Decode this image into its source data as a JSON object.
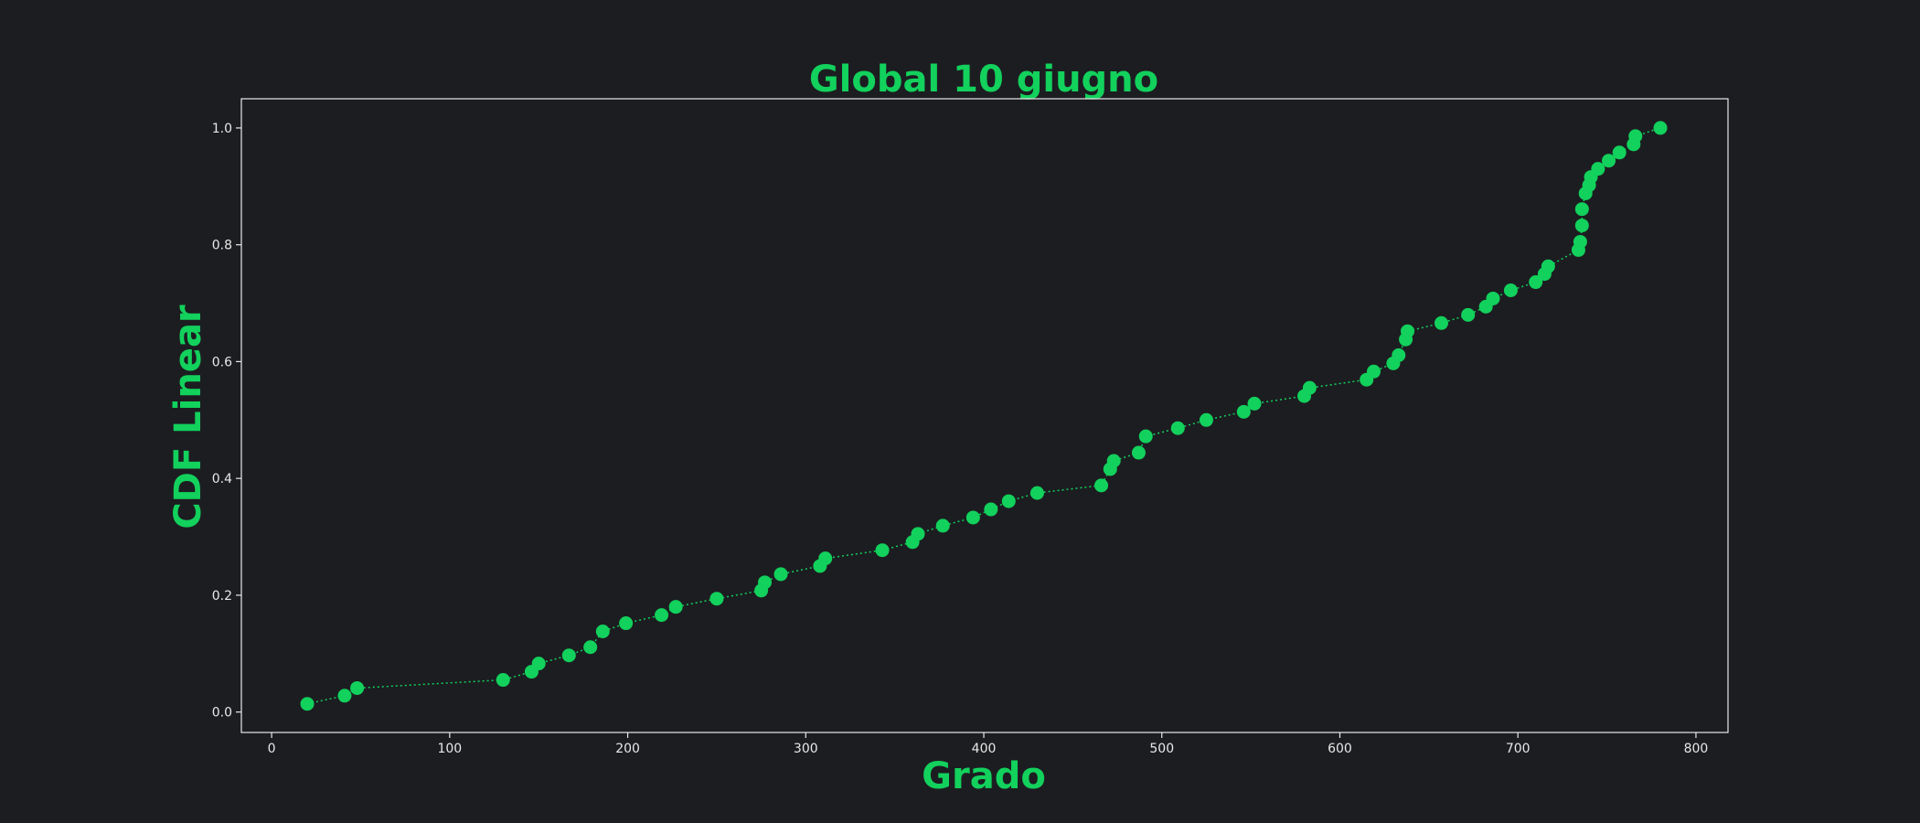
{
  "colors": {
    "background": "#1c1d21",
    "accent": "#12d15c",
    "axes": "#e8e8e8"
  },
  "chart_data": {
    "type": "line",
    "title": "Global 10 giugno",
    "xlabel": "Grado",
    "ylabel": "CDF Linear",
    "xlim": [
      -17,
      818
    ],
    "ylim": [
      -0.035,
      1.05
    ],
    "xticks": [
      0,
      100,
      200,
      300,
      400,
      500,
      600,
      700,
      800
    ],
    "xtick_labels": [
      "0",
      "100",
      "200",
      "300",
      "400",
      "500",
      "600",
      "700",
      "800"
    ],
    "yticks": [
      0.0,
      0.2,
      0.4,
      0.6,
      0.8,
      1.0
    ],
    "ytick_labels": [
      "0.0",
      "0.2",
      "0.4",
      "0.6",
      "0.8",
      "1.0"
    ],
    "grid": false,
    "line_style": "dotted",
    "marker": "circle",
    "series": [
      {
        "x": [
          20,
          41,
          48,
          130,
          146,
          150,
          167,
          179,
          186,
          199,
          219,
          227,
          250,
          275,
          277,
          286,
          308,
          311,
          343,
          360,
          363,
          377,
          394,
          404,
          414,
          430,
          466,
          471,
          473,
          487,
          491,
          509,
          525,
          546,
          552,
          580,
          583,
          615,
          619,
          630,
          633,
          637,
          638,
          657,
          672,
          682,
          686,
          696,
          710,
          715,
          717,
          734,
          735,
          736,
          736,
          738,
          740,
          741,
          745,
          751,
          757,
          765,
          766,
          780
        ],
        "y": [
          0.014,
          0.028,
          0.041,
          0.055,
          0.069,
          0.083,
          0.097,
          0.111,
          0.138,
          0.152,
          0.166,
          0.18,
          0.194,
          0.208,
          0.222,
          0.236,
          0.25,
          0.263,
          0.277,
          0.291,
          0.305,
          0.319,
          0.333,
          0.347,
          0.361,
          0.375,
          0.388,
          0.416,
          0.43,
          0.444,
          0.472,
          0.486,
          0.5,
          0.514,
          0.528,
          0.541,
          0.555,
          0.569,
          0.583,
          0.597,
          0.611,
          0.638,
          0.652,
          0.666,
          0.68,
          0.694,
          0.708,
          0.722,
          0.736,
          0.75,
          0.763,
          0.791,
          0.805,
          0.833,
          0.861,
          0.888,
          0.902,
          0.916,
          0.93,
          0.944,
          0.958,
          0.972,
          0.986,
          1.0
        ]
      }
    ]
  }
}
